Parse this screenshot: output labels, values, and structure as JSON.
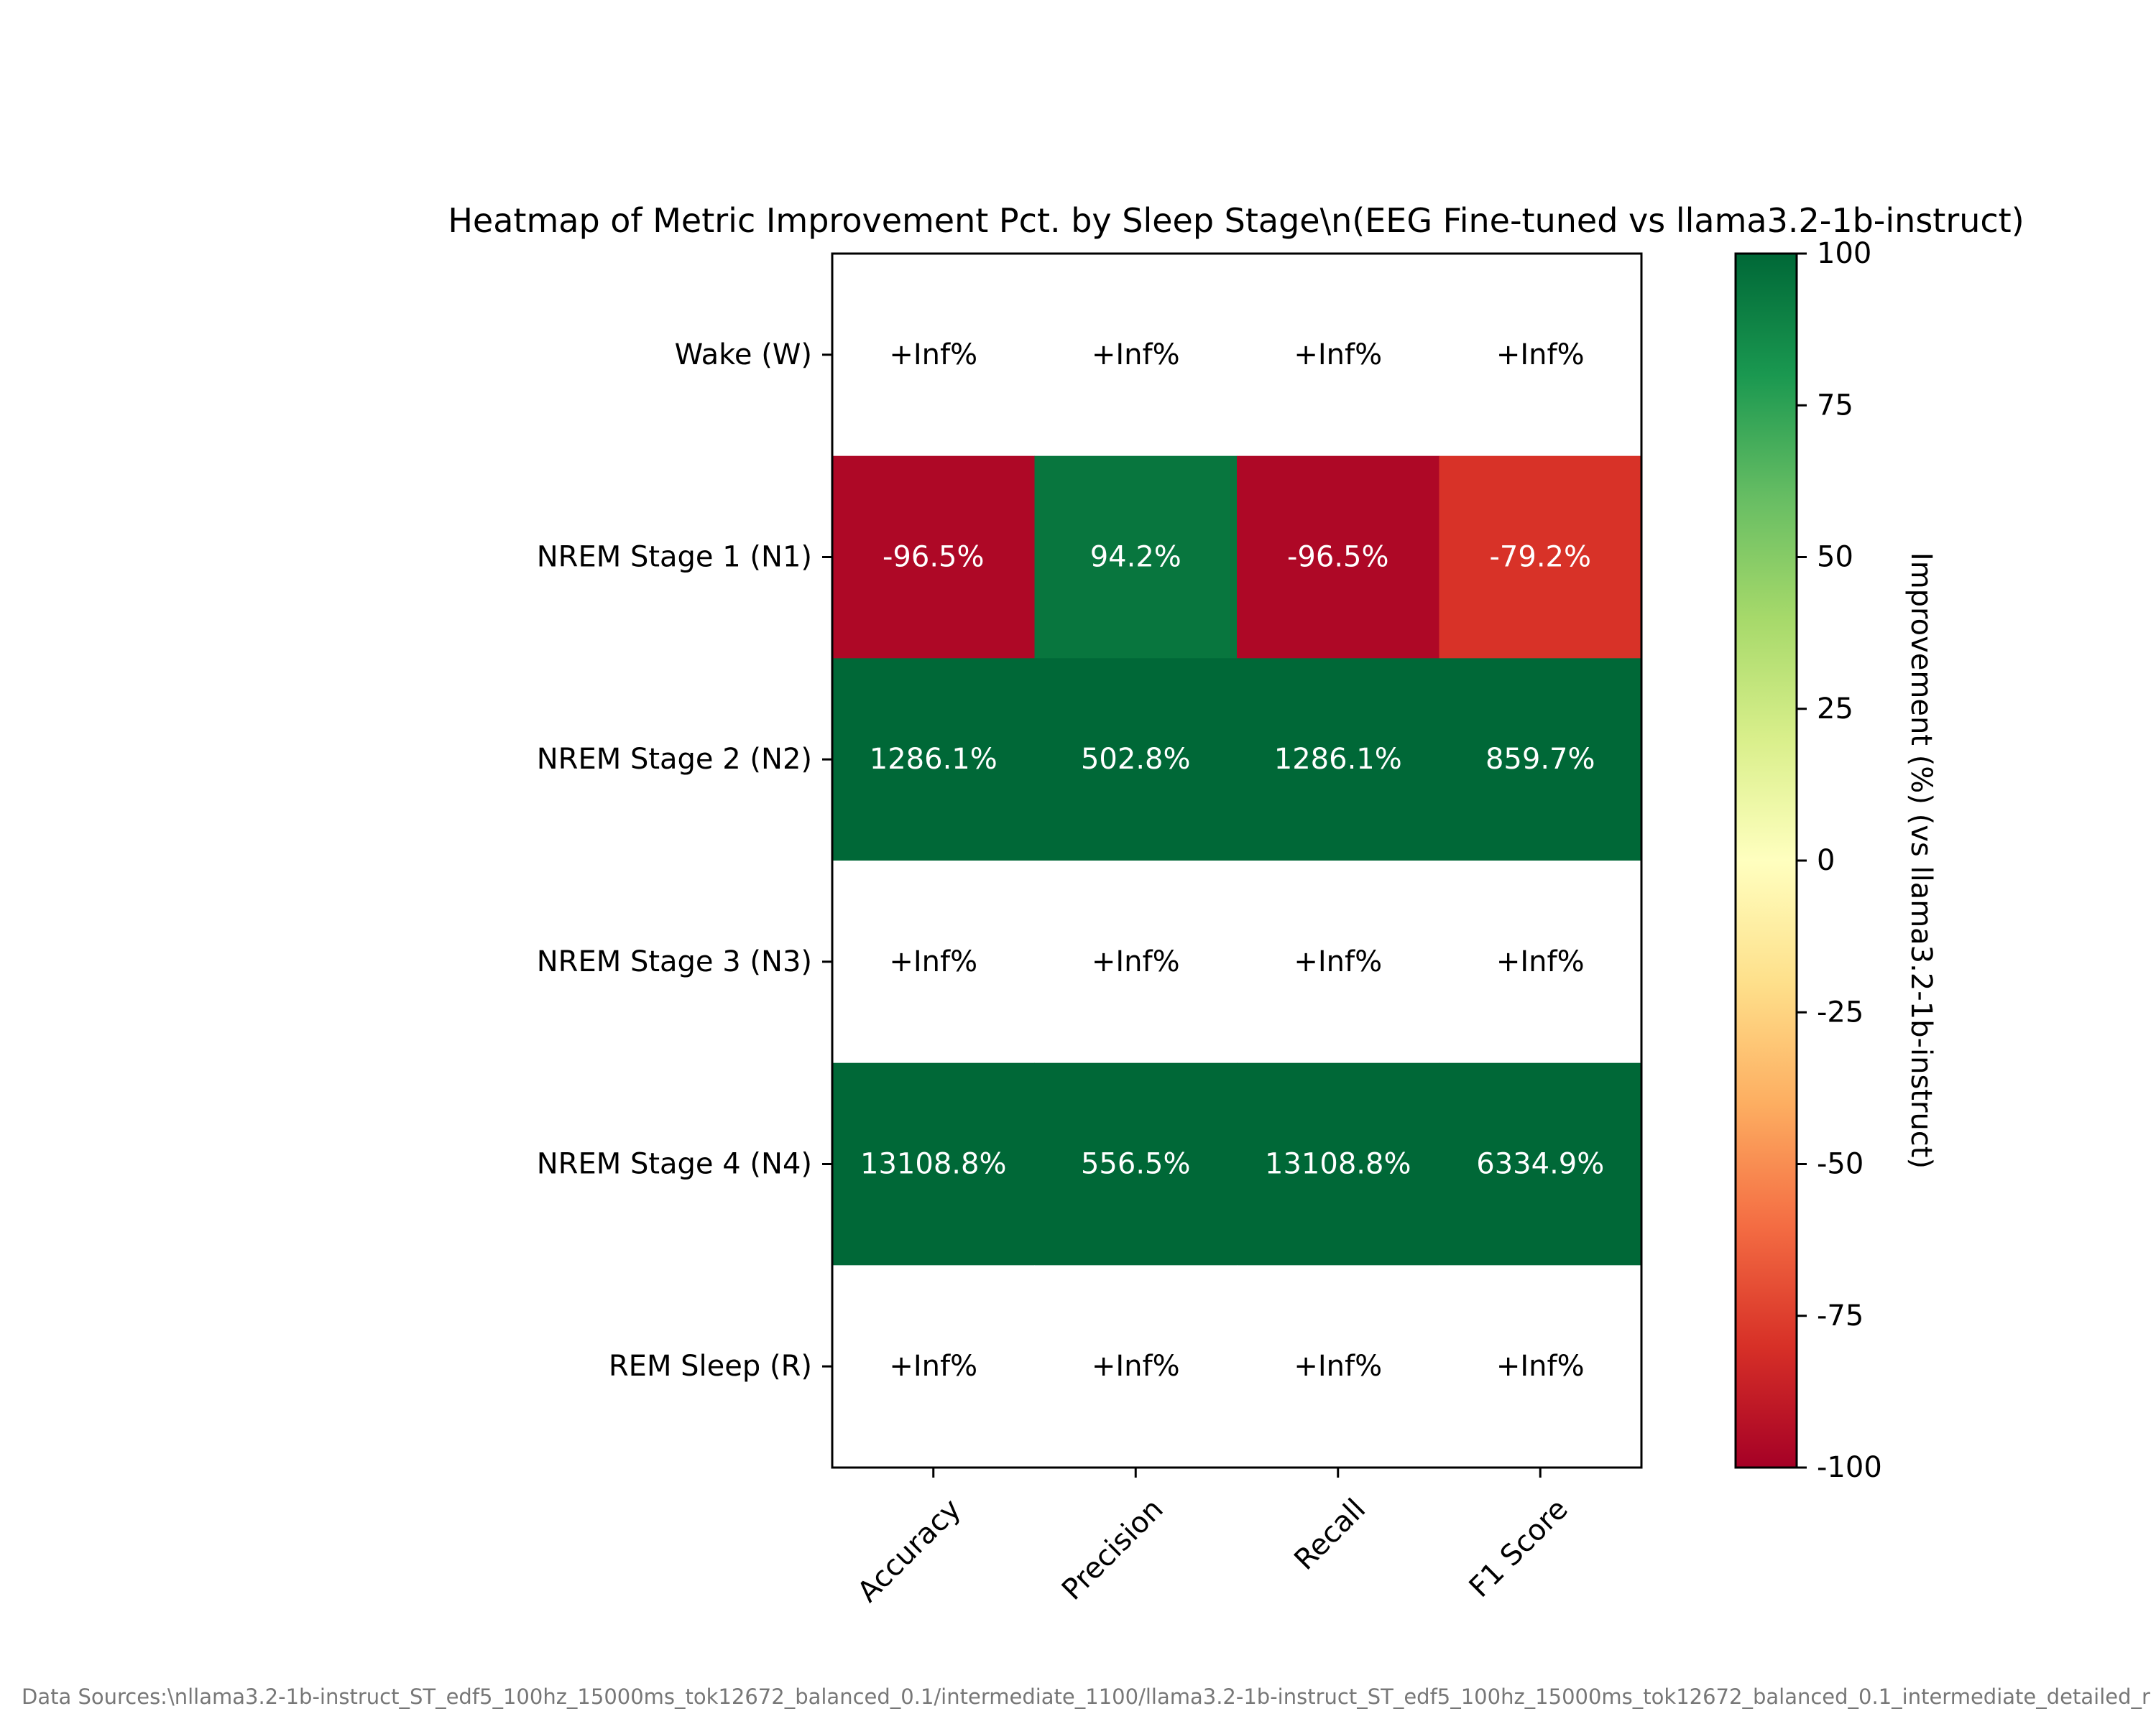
{
  "chart_data": {
    "type": "heatmap",
    "title": "Heatmap of Metric Improvement Pct. by Sleep Stage\\n(EEG Fine-tuned vs llama3.2-1b-instruct)",
    "columns": [
      "Accuracy",
      "Precision",
      "Recall",
      "F1 Score"
    ],
    "rows": [
      "Wake (W)",
      "NREM Stage 1 (N1)",
      "NREM Stage 2 (N2)",
      "NREM Stage 3 (N3)",
      "NREM Stage 4 (N4)",
      "REM Sleep (R)"
    ],
    "values": [
      [
        null,
        null,
        null,
        null
      ],
      [
        -96.5,
        94.2,
        -96.5,
        -79.2
      ],
      [
        1286.1,
        502.8,
        1286.1,
        859.7
      ],
      [
        null,
        null,
        null,
        null
      ],
      [
        13108.8,
        556.5,
        13108.8,
        6334.9
      ],
      [
        null,
        null,
        null,
        null
      ]
    ],
    "cell_labels": [
      [
        "+Inf%",
        "+Inf%",
        "+Inf%",
        "+Inf%"
      ],
      [
        "-96.5%",
        "94.2%",
        "-96.5%",
        "-79.2%"
      ],
      [
        "1286.1%",
        "502.8%",
        "1286.1%",
        "859.7%"
      ],
      [
        "+Inf%",
        "+Inf%",
        "+Inf%",
        "+Inf%"
      ],
      [
        "13108.8%",
        "556.5%",
        "13108.8%",
        "6334.9%"
      ],
      [
        "+Inf%",
        "+Inf%",
        "+Inf%",
        "+Inf%"
      ]
    ],
    "colormap": "RdYlGn",
    "color_range": [
      -100,
      100
    ],
    "colorbar_ticks": [
      100,
      75,
      50,
      25,
      0,
      -25,
      -50,
      -75,
      -100
    ],
    "colorbar_label": "Improvement (%) (vs llama3.2-1b-instruct)",
    "colors": {
      "missing_cell": "#ffffff",
      "label_dark": "#000000",
      "label_light": "#ffffff"
    }
  },
  "footer": {
    "data_sources": "Data Sources:\\nllama3.2-1b-instruct_ST_edf5_100hz_15000ms_tok12672_balanced_0.1/intermediate_1100/llama3.2-1b-instruct_ST_edf5_100hz_15000ms_tok12672_balanced_0.1_intermediate_detailed_r"
  }
}
